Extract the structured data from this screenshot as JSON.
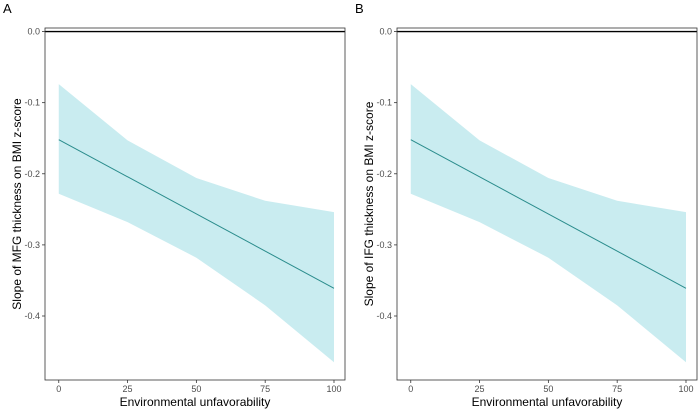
{
  "chart_data": [
    {
      "type": "line",
      "panel_label": "A",
      "xlabel": "Environmental unfavorability",
      "ylabel": "Slope of MFG thickness on BMI z-score",
      "xlim": [
        -5,
        104
      ],
      "ylim": [
        -0.49,
        0.005
      ],
      "xticks": [
        0,
        25,
        50,
        75,
        100
      ],
      "yticks": [
        0.0,
        -0.1,
        -0.2,
        -0.3,
        -0.4
      ],
      "ytick_labels": [
        "0.0",
        "-0.1",
        "-0.2",
        "-0.3",
        "-0.4"
      ],
      "reference_line": 0.0,
      "x": [
        0,
        100
      ],
      "y": [
        -0.152,
        -0.361
      ],
      "ci_x": [
        0,
        25,
        50,
        75,
        100
      ],
      "ci_lower": [
        -0.228,
        -0.268,
        -0.318,
        -0.385,
        -0.465
      ],
      "ci_upper": [
        -0.074,
        -0.153,
        -0.206,
        -0.238,
        -0.254
      ],
      "colors": {
        "line": "#2a8c8c",
        "band": "#c9ecf0",
        "reference": "#000000"
      }
    },
    {
      "type": "line",
      "panel_label": "B",
      "xlabel": "Environmental unfavorability",
      "ylabel": "Slope of IFG thickness on BMI z-score",
      "xlim": [
        -5,
        104
      ],
      "ylim": [
        -0.49,
        0.005
      ],
      "xticks": [
        0,
        25,
        50,
        75,
        100
      ],
      "yticks": [
        0.0,
        -0.1,
        -0.2,
        -0.3,
        -0.4
      ],
      "ytick_labels": [
        "0.0",
        "-0.1",
        "-0.2",
        "-0.3",
        "-0.4"
      ],
      "reference_line": 0.0,
      "x": [
        0,
        100
      ],
      "y": [
        -0.152,
        -0.361
      ],
      "ci_x": [
        0,
        25,
        50,
        75,
        100
      ],
      "ci_lower": [
        -0.228,
        -0.268,
        -0.318,
        -0.385,
        -0.465
      ],
      "ci_upper": [
        -0.074,
        -0.153,
        -0.206,
        -0.238,
        -0.254
      ],
      "colors": {
        "line": "#2a8c8c",
        "band": "#c9ecf0",
        "reference": "#000000"
      }
    }
  ]
}
